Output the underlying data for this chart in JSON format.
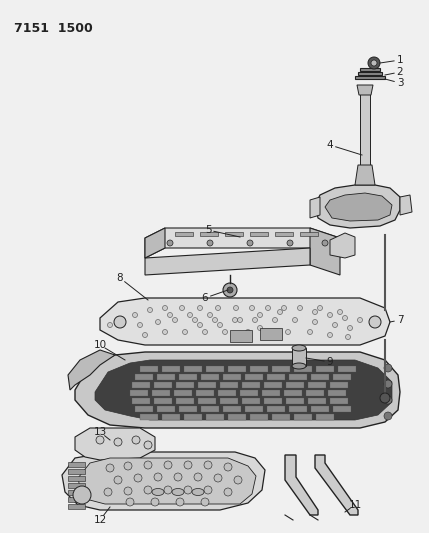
{
  "title": "7151  1500",
  "bg_color": "#f0f0f0",
  "fg_color": "#222222",
  "part_fill": "#e8e8e8",
  "part_dark": "#555555",
  "part_mid": "#888888"
}
